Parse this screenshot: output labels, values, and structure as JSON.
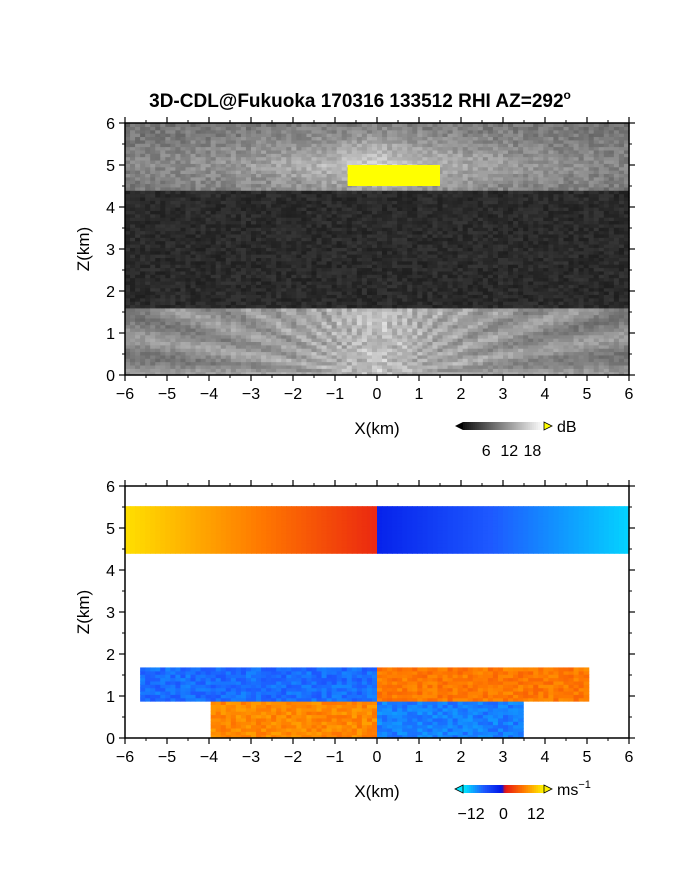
{
  "title": "3D-CDL@Fukuoka 170316 133512 RHI AZ=292°",
  "title_main": "3D-CDL@Fukuoka 170316 133512 RHI AZ=292",
  "title_degree": "o",
  "chart_data": [
    {
      "type": "heatmap",
      "name": "reflectivity",
      "title": "3D-CDL@Fukuoka 170316 133512 RHI AZ=292°",
      "xlabel": "X(km)",
      "ylabel": "Z(km)",
      "xlim": [
        -6,
        6
      ],
      "ylim": [
        0,
        6
      ],
      "xticks": [
        "−6",
        "−5",
        "−4",
        "−3",
        "−2",
        "−1",
        "0",
        "1",
        "2",
        "3",
        "4",
        "5",
        "6"
      ],
      "yticks": [
        "0",
        "1",
        "2",
        "3",
        "4",
        "5",
        "6"
      ],
      "colorbar": {
        "unit": "dB",
        "ticks": [
          "6",
          "12",
          "18"
        ],
        "range": [
          0,
          21
        ],
        "colors": "grayscale, yellow above max"
      },
      "layers": [
        {
          "z_bottom": 4.4,
          "z_top": 6.0,
          "description": "upper cloud echo, strongest near x=0"
        },
        {
          "z_bottom": 0.0,
          "z_top": 1.6,
          "description": "lower echo, radial streaks from origin"
        }
      ],
      "saturated_region": {
        "x": [
          -0.7,
          1.5
        ],
        "z": [
          4.5,
          5.0
        ]
      }
    },
    {
      "type": "heatmap",
      "name": "doppler_velocity",
      "xlabel": "X(km)",
      "ylabel": "Z(km)",
      "xlim": [
        -6,
        6
      ],
      "ylim": [
        0,
        6
      ],
      "xticks": [
        "−6",
        "−5",
        "−4",
        "−3",
        "−2",
        "−1",
        "0",
        "1",
        "2",
        "3",
        "4",
        "5",
        "6"
      ],
      "yticks": [
        "0",
        "1",
        "2",
        "3",
        "4",
        "5",
        "6"
      ],
      "colorbar": {
        "unit": "ms",
        "unit_exp": "−1",
        "ticks": [
          "−12",
          "0",
          "12"
        ],
        "range": [
          -15,
          15
        ],
        "colors": "cyan-blue negative, red-yellow positive"
      },
      "layers": [
        {
          "z": [
            4.4,
            5.5
          ],
          "x": [
            -6,
            0
          ],
          "velocity": "positive, increasing away from origin"
        },
        {
          "z": [
            4.4,
            5.5
          ],
          "x": [
            0,
            6
          ],
          "velocity": "negative, increasing magnitude away from origin"
        },
        {
          "z": [
            0.9,
            1.7
          ],
          "x": [
            -6,
            0
          ],
          "velocity": "negative"
        },
        {
          "z": [
            0.9,
            1.7
          ],
          "x": [
            0,
            5
          ],
          "velocity": "positive"
        },
        {
          "z": [
            0.0,
            0.9
          ],
          "x": [
            -4,
            0
          ],
          "velocity": "positive"
        },
        {
          "z": [
            0.0,
            0.9
          ],
          "x": [
            0,
            3.5
          ],
          "velocity": "negative"
        }
      ]
    }
  ],
  "colors": {
    "frame": "#000000",
    "saturated": "#ffff00",
    "background": "#ffffff"
  }
}
